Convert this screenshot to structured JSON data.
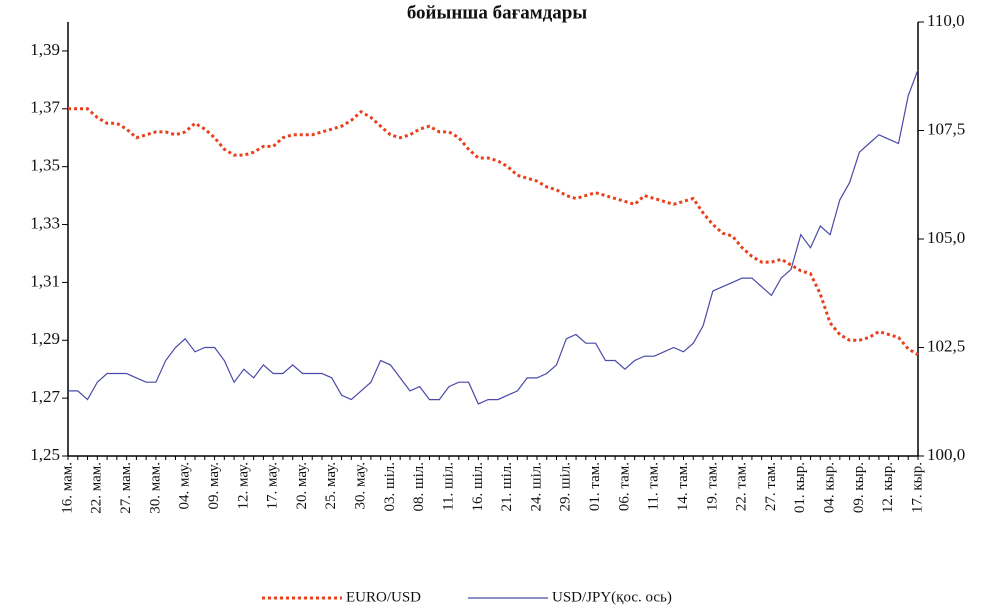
{
  "chart_data": {
    "type": "line",
    "title": "бойынша бағамдары",
    "categories": [
      "16. мам.",
      null,
      null,
      "22. мам.",
      null,
      null,
      "27. мам.",
      null,
      null,
      "30. мам.",
      null,
      null,
      "04. мау.",
      null,
      null,
      "09. мау.",
      null,
      null,
      "12. мау.",
      null,
      null,
      "17. мау.",
      null,
      null,
      "20. мау.",
      null,
      null,
      "25. мау.",
      null,
      null,
      "30. мау.",
      null,
      null,
      "03. шіл.",
      null,
      null,
      "08. шіл.",
      null,
      null,
      "11. шіл.",
      null,
      null,
      "16. шіл.",
      null,
      null,
      "21. шіл.",
      null,
      null,
      "24. шіл.",
      null,
      null,
      "29. шіл.",
      null,
      null,
      "01. там.",
      null,
      null,
      "06. там.",
      null,
      null,
      "11. там.",
      null,
      null,
      "14. там.",
      null,
      null,
      "19. там.",
      null,
      null,
      "22. там.",
      null,
      null,
      "27. там.",
      null,
      null,
      "01. кыр.",
      null,
      null,
      "04. кыр.",
      null,
      null,
      "09. кыр.",
      null,
      null,
      "12. кыр.",
      null,
      null,
      "17. кыр."
    ],
    "series": [
      {
        "name": "EURO/USD",
        "color": "#e8401c",
        "axis": "y",
        "values": [
          1.37,
          1.37,
          1.37,
          1.367,
          1.365,
          1.365,
          1.363,
          1.36,
          1.361,
          1.362,
          1.362,
          1.361,
          1.362,
          1.365,
          1.363,
          1.36,
          1.356,
          1.354,
          1.354,
          1.355,
          1.357,
          1.357,
          1.36,
          1.361,
          1.361,
          1.361,
          1.362,
          1.363,
          1.364,
          1.366,
          1.369,
          1.367,
          1.364,
          1.361,
          1.36,
          1.361,
          1.363,
          1.364,
          1.362,
          1.362,
          1.36,
          1.356,
          1.353,
          1.353,
          1.352,
          1.35,
          1.347,
          1.346,
          1.345,
          1.343,
          1.342,
          1.34,
          1.339,
          1.34,
          1.341,
          1.34,
          1.339,
          1.338,
          1.337,
          1.34,
          1.339,
          1.338,
          1.337,
          1.338,
          1.339,
          1.334,
          1.33,
          1.327,
          1.326,
          1.322,
          1.319,
          1.317,
          1.317,
          1.318,
          1.316,
          1.314,
          1.313,
          1.306,
          1.296,
          1.292,
          1.29,
          1.29,
          1.291,
          1.293,
          1.292,
          1.291,
          1.287,
          1.285
        ]
      },
      {
        "name": "USD/JPY(қос. ось)",
        "color": "#4a4aa8",
        "axis": "y2",
        "values": [
          101.5,
          101.5,
          101.3,
          101.7,
          101.9,
          101.9,
          101.9,
          101.8,
          101.7,
          101.7,
          102.2,
          102.5,
          102.7,
          102.4,
          102.5,
          102.5,
          102.2,
          101.7,
          102.0,
          101.8,
          102.1,
          101.9,
          101.9,
          102.1,
          101.9,
          101.9,
          101.9,
          101.8,
          101.4,
          101.3,
          101.5,
          101.7,
          102.2,
          102.1,
          101.8,
          101.5,
          101.6,
          101.3,
          101.3,
          101.6,
          101.7,
          101.7,
          101.2,
          101.3,
          101.3,
          101.4,
          101.5,
          101.8,
          101.8,
          101.9,
          102.1,
          102.7,
          102.8,
          102.6,
          102.6,
          102.2,
          102.2,
          102.0,
          102.2,
          102.3,
          102.3,
          102.4,
          102.5,
          102.4,
          102.6,
          103.0,
          103.8,
          103.9,
          104.0,
          104.1,
          104.1,
          103.9,
          103.7,
          104.1,
          104.3,
          105.1,
          104.8,
          105.3,
          105.1,
          105.9,
          106.3,
          107.0,
          107.2,
          107.4,
          107.3,
          107.2,
          108.3,
          108.9
        ]
      }
    ],
    "ylim": [
      1.25,
      1.4
    ],
    "yticks": [
      {
        "value": 1.25,
        "label": "1,25"
      },
      {
        "value": 1.27,
        "label": "1,27"
      },
      {
        "value": 1.29,
        "label": "1,29"
      },
      {
        "value": 1.31,
        "label": "1,31"
      },
      {
        "value": 1.33,
        "label": "1,33"
      },
      {
        "value": 1.35,
        "label": "1,35"
      },
      {
        "value": 1.37,
        "label": "1,37"
      },
      {
        "value": 1.39,
        "label": "1,39"
      }
    ],
    "y2lim": [
      100,
      110
    ],
    "y2ticks": [
      {
        "value": 100,
        "label": "100,0"
      },
      {
        "value": 102.5,
        "label": "102,5"
      },
      {
        "value": 105,
        "label": "105,0"
      },
      {
        "value": 107.5,
        "label": "107,5"
      },
      {
        "value": 110,
        "label": "110,0"
      }
    ],
    "grid": false,
    "legend": "bottom"
  }
}
